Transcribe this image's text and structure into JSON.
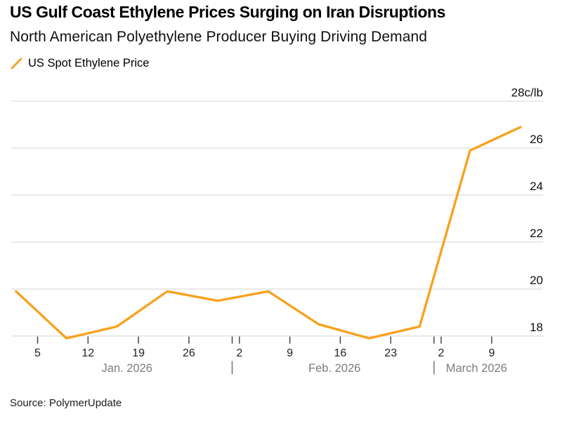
{
  "header": {
    "title": "US Gulf Coast Ethylene Prices Surging on Iran Disruptions",
    "subtitle": "North American Polyethylene Producer Buying Driving Demand"
  },
  "legend": {
    "series_label": "US Spot Ethylene Price"
  },
  "source": "Source: PolymerUpdate",
  "colors": {
    "line": "#F9A01B",
    "gridline": "#E4E4E4",
    "tick": "#3C3C3C",
    "day_label": "#1F1F1F",
    "month_label": "#7B7B84",
    "value_label": "#0F0F14",
    "background": "#FFFFFF"
  },
  "chart_data": {
    "type": "line",
    "unit_label": "28c/lb",
    "grid": "horizontal-only",
    "legend_position": "top-left",
    "series": [
      {
        "name": "US Spot Ethylene Price",
        "color": "#F9A01B",
        "points": [
          {
            "date": "Jan 2 2026",
            "day": 0,
            "value": 19.9
          },
          {
            "date": "Jan 9 2026",
            "day": 7,
            "value": 17.9
          },
          {
            "date": "Jan 16 2026",
            "day": 14,
            "value": 18.4
          },
          {
            "date": "Jan 23 2026",
            "day": 21,
            "value": 19.9
          },
          {
            "date": "Jan 30 2026",
            "day": 28,
            "value": 19.5
          },
          {
            "date": "Feb 6 2026",
            "day": 35,
            "value": 19.9
          },
          {
            "date": "Feb 13 2026",
            "day": 42,
            "value": 18.5
          },
          {
            "date": "Feb 20 2026",
            "day": 49,
            "value": 17.9
          },
          {
            "date": "Feb 27 2026",
            "day": 56,
            "value": 18.4
          },
          {
            "date": "Mar 6 2026",
            "day": 63,
            "value": 25.9
          },
          {
            "date": "Mar 13 2026",
            "day": 70,
            "value": 26.9
          }
        ]
      }
    ],
    "y_axis": {
      "range": [
        17.8,
        28
      ],
      "ticks": [
        {
          "value": 28,
          "label": "28c/lb"
        },
        {
          "value": 26,
          "label": "26"
        },
        {
          "value": 24,
          "label": "24"
        },
        {
          "value": 22,
          "label": "22"
        },
        {
          "value": 20,
          "label": "20"
        },
        {
          "value": 18,
          "label": "18"
        }
      ]
    },
    "x_axis": {
      "ticks": [
        {
          "label": "5",
          "day": 3
        },
        {
          "label": "12",
          "day": 10
        },
        {
          "label": "19",
          "day": 17
        },
        {
          "label": "26",
          "day": 24
        },
        {
          "label": "2",
          "day": 31
        },
        {
          "label": "9",
          "day": 38
        },
        {
          "label": "16",
          "day": 45
        },
        {
          "label": "23",
          "day": 52
        },
        {
          "label": "2",
          "day": 59
        },
        {
          "label": "9",
          "day": 66
        }
      ],
      "months": [
        {
          "label": "Jan. 2026",
          "center_day": 15.4,
          "separator_day": null
        },
        {
          "label": "Feb. 2026",
          "center_day": 44.2,
          "separator_day": 30
        },
        {
          "label": "March 2026",
          "center_day": 63.9,
          "separator_day": 58
        }
      ]
    }
  }
}
